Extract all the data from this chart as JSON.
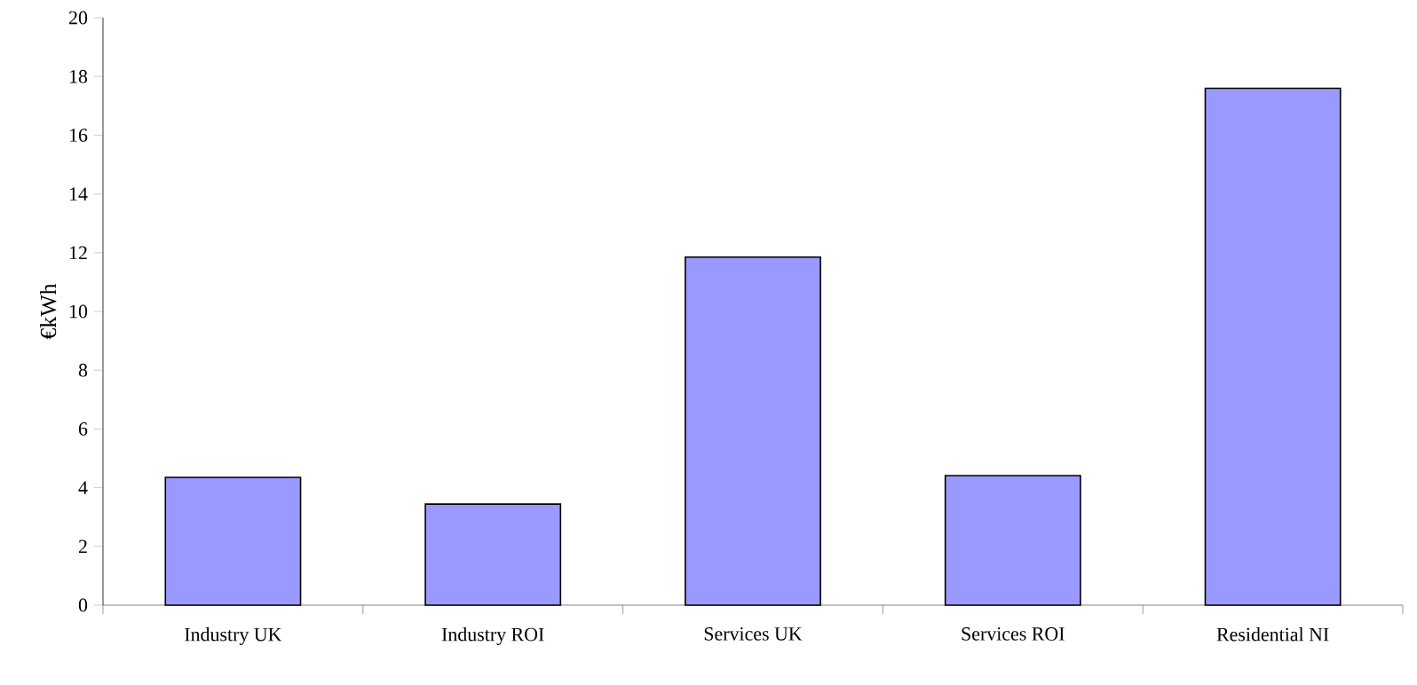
{
  "chart_data": {
    "type": "bar",
    "ylabel": "€kWh",
    "categories": [
      "Industry UK",
      "Industry ROI",
      "Services UK",
      "Services ROI",
      "Residential NI"
    ],
    "values": [
      4.35,
      3.44,
      11.85,
      4.41,
      17.6
    ],
    "color": "#9999ff",
    "ylim": [
      0,
      20
    ],
    "yticks": [
      0,
      2,
      4,
      6,
      8,
      10,
      12,
      14,
      16,
      18,
      20
    ],
    "grid": false
  }
}
